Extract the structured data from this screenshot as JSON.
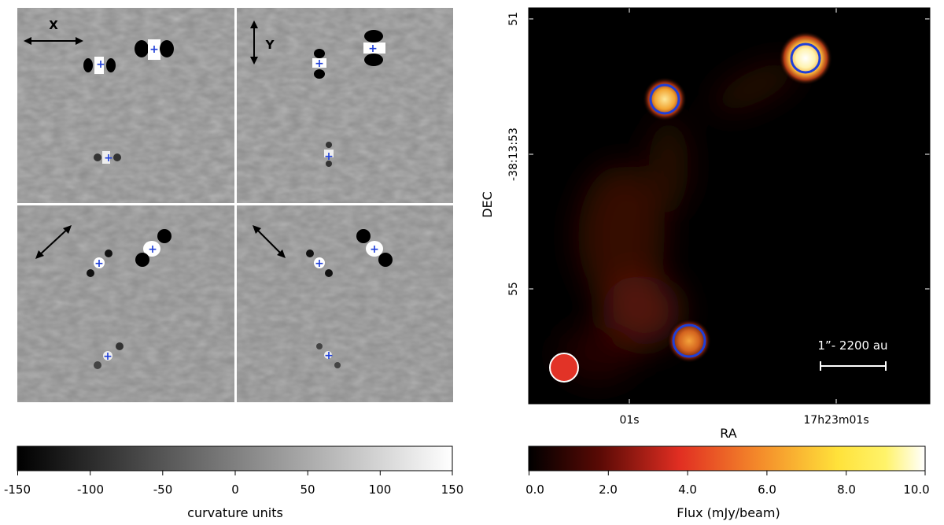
{
  "left_figure": {
    "panel_labels": {
      "x": "X",
      "y": "Y"
    },
    "colorbar": {
      "ticks": [
        "-150",
        "-100",
        "-50",
        "0",
        "50",
        "100",
        "150"
      ],
      "label": "curvature units",
      "range": [
        -150,
        150
      ]
    }
  },
  "right_figure": {
    "x_axis": {
      "label": "RA",
      "ticks": [
        "01s",
        "17h23m01s"
      ]
    },
    "y_axis": {
      "label": "DEC",
      "ticks": [
        "51",
        "-38:13:53",
        "55"
      ]
    },
    "scalebar_label": "1”- 2200 au",
    "colorbar": {
      "ticks": [
        "0.0",
        "2.0",
        "4.0",
        "6.0",
        "8.0",
        "10.0"
      ],
      "label": "Flux (mJy/beam)",
      "range": [
        0,
        10
      ]
    }
  },
  "colors": {
    "marker_blue": "#1f3fd8",
    "beam_red": "#e23327",
    "map_bg": "#000000"
  }
}
